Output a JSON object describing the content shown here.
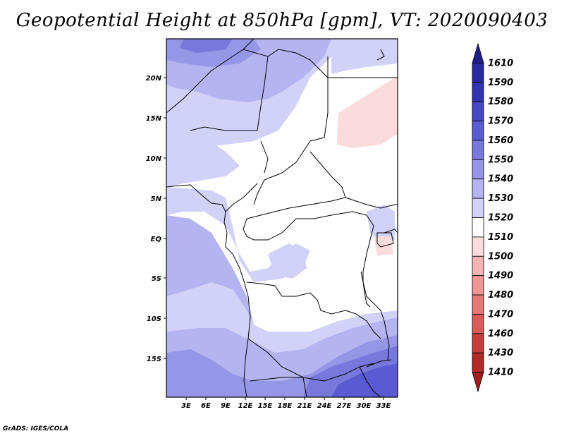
{
  "title": "Geopotential Height at 850hPa [gpm], VT: 2020090403",
  "footer": "GrADS: IGES/COLA",
  "map": {
    "lon_labels": [
      "3E",
      "6E",
      "9E",
      "12E",
      "15E",
      "18E",
      "21E",
      "24E",
      "27E",
      "30E",
      "33E"
    ],
    "lat_labels": [
      "20N",
      "15N",
      "10N",
      "5N",
      "EQ",
      "5S",
      "10S",
      "15S"
    ]
  },
  "legend": {
    "levels": [
      "1610",
      "1590",
      "1580",
      "1570",
      "1560",
      "1550",
      "1540",
      "1530",
      "1520",
      "1510",
      "1500",
      "1490",
      "1480",
      "1470",
      "1460",
      "1430",
      "1410"
    ],
    "colors": [
      "#1e1e8c",
      "#2828a0",
      "#3232b4",
      "#4646c8",
      "#5a5ad2",
      "#7878dc",
      "#9696e6",
      "#b4b4f0",
      "#d2d2f8",
      "#ffffff",
      "#fadcdc",
      "#f5b4b4",
      "#f09696",
      "#e67878",
      "#dc5a5a",
      "#c83c3c",
      "#b42828",
      "#a01e1e"
    ]
  }
}
